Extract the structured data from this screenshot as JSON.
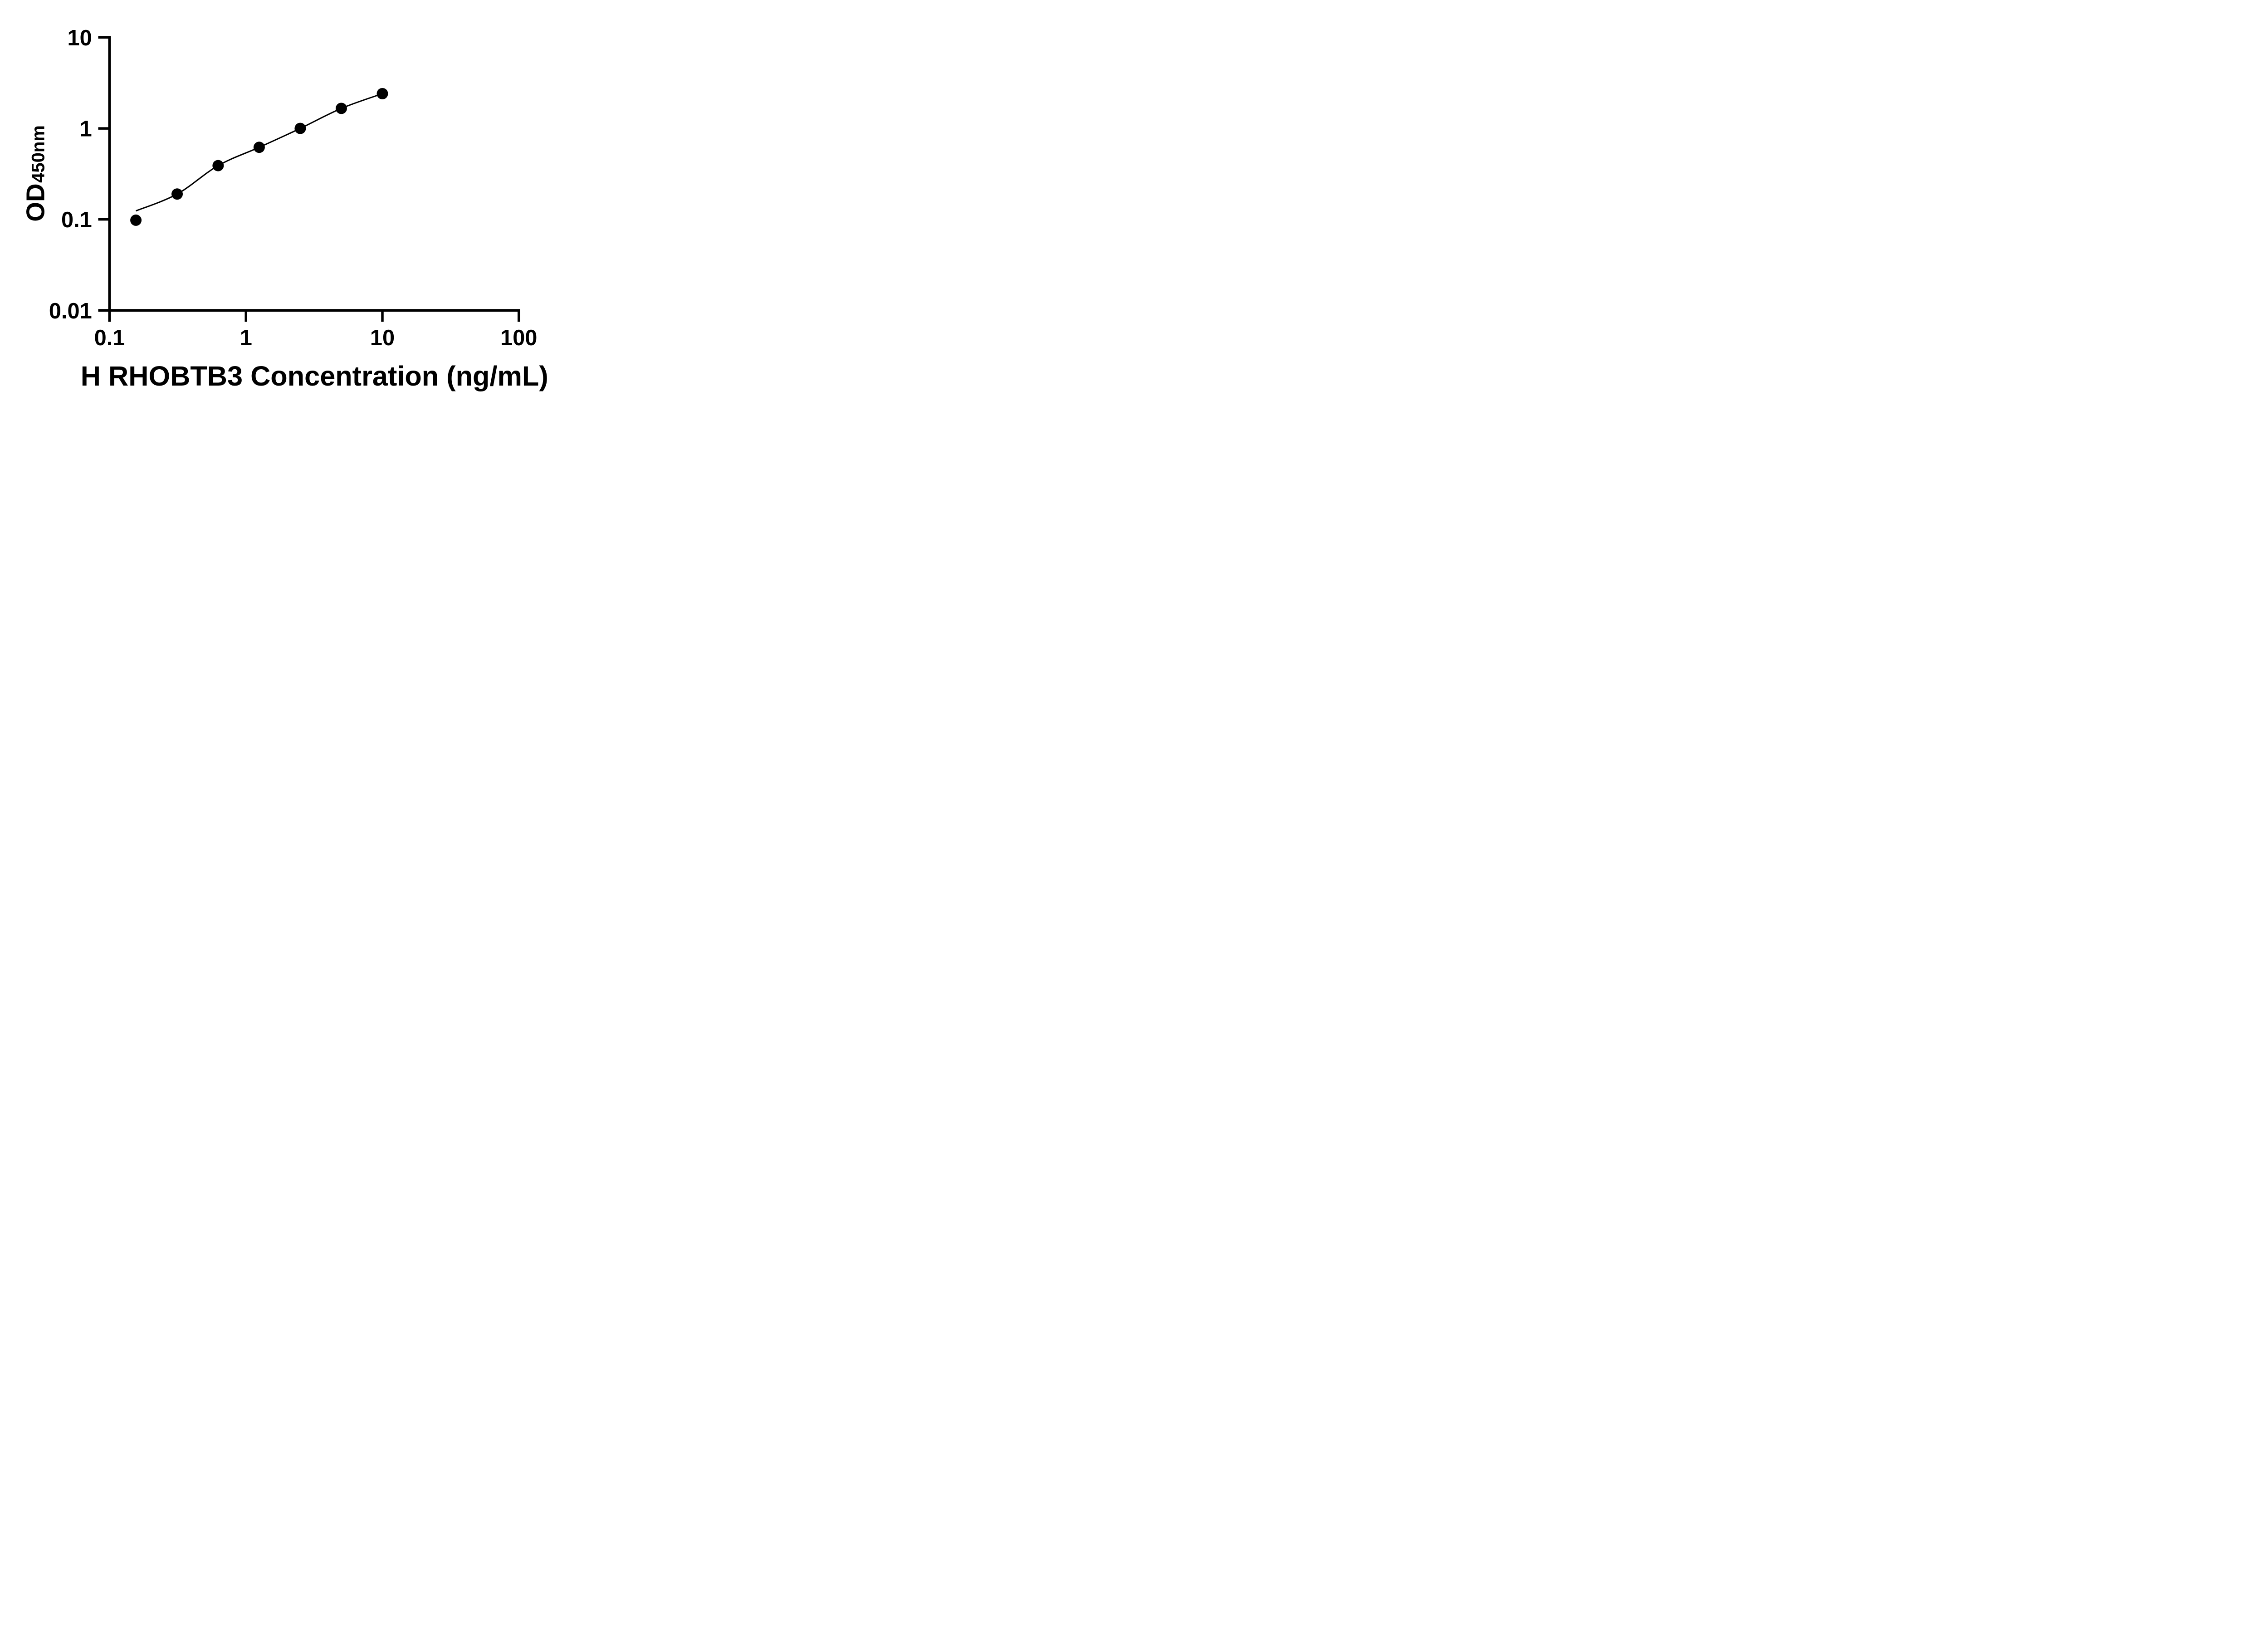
{
  "figure": {
    "background": "#ffffff",
    "ink_color": "#000000",
    "kind": "ELISA standard curve plot"
  },
  "chart_data": {
    "type": "scatter",
    "subtype": "standard-curve-points-with-fit-line",
    "title": "",
    "xlabel": "H RHOBTB3 Concentration (ng/mL)",
    "ylabel": {
      "main": "OD",
      "sub": "450nm"
    },
    "x_scale": "log10",
    "y_scale": "log10",
    "xlim": [
      0.1,
      100
    ],
    "ylim": [
      0.01,
      10
    ],
    "grid": false,
    "legend": "none",
    "x_ticks": [
      {
        "value": 0.1,
        "label": "0.1"
      },
      {
        "value": 1,
        "label": "1"
      },
      {
        "value": 10,
        "label": "10"
      },
      {
        "value": 100,
        "label": "100"
      }
    ],
    "y_ticks": [
      {
        "value": 10,
        "label": "10"
      },
      {
        "value": 1,
        "label": "1"
      },
      {
        "value": 0.1,
        "label": "0.1"
      },
      {
        "value": 0.01,
        "label": "0.01"
      }
    ],
    "series": [
      {
        "name": "standard-points",
        "marker": "filled-circle",
        "color": "#000000",
        "points": [
          {
            "x": 0.156,
            "od": 0.098
          },
          {
            "x": 0.313,
            "od": 0.19
          },
          {
            "x": 0.625,
            "od": 0.39
          },
          {
            "x": 1.25,
            "od": 0.62
          },
          {
            "x": 2.5,
            "od": 1.0
          },
          {
            "x": 5,
            "od": 1.66
          },
          {
            "x": 10,
            "od": 2.41
          }
        ]
      },
      {
        "name": "fit-curve",
        "marker": "none",
        "color": "#000000",
        "points": [
          {
            "x": 0.156,
            "od": 0.124
          },
          {
            "x": 0.313,
            "od": 0.19
          },
          {
            "x": 0.625,
            "od": 0.39
          },
          {
            "x": 1.25,
            "od": 0.62
          },
          {
            "x": 2.5,
            "od": 1.0
          },
          {
            "x": 5,
            "od": 1.66
          },
          {
            "x": 10,
            "od": 2.41
          }
        ]
      }
    ]
  }
}
